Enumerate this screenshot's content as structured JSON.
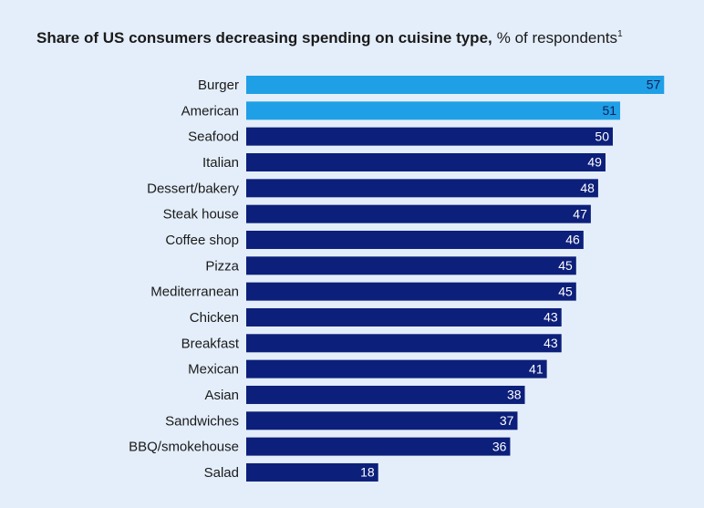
{
  "chart_data": {
    "type": "bar",
    "orientation": "horizontal",
    "title": "Share of US consumers decreasing spending on cuisine type,",
    "subtitle": "% of respondents",
    "footnote_marker": "1",
    "categories": [
      "Burger",
      "American",
      "Seafood",
      "Italian",
      "Dessert/bakery",
      "Steak house",
      "Coffee shop",
      "Pizza",
      "Mediterranean",
      "Chicken",
      "Breakfast",
      "Mexican",
      "Asian",
      "Sandwiches",
      "BBQ/smokehouse",
      "Salad"
    ],
    "values": [
      57,
      51,
      50,
      49,
      48,
      47,
      46,
      45,
      45,
      43,
      43,
      41,
      38,
      37,
      36,
      18
    ],
    "colors": [
      "#1f9fe6",
      "#1f9fe6",
      "#0c1f7a",
      "#0c1f7a",
      "#0c1f7a",
      "#0c1f7a",
      "#0c1f7a",
      "#0c1f7a",
      "#0c1f7a",
      "#0c1f7a",
      "#0c1f7a",
      "#0c1f7a",
      "#0c1f7a",
      "#0c1f7a",
      "#0c1f7a",
      "#0c1f7a"
    ]
  }
}
